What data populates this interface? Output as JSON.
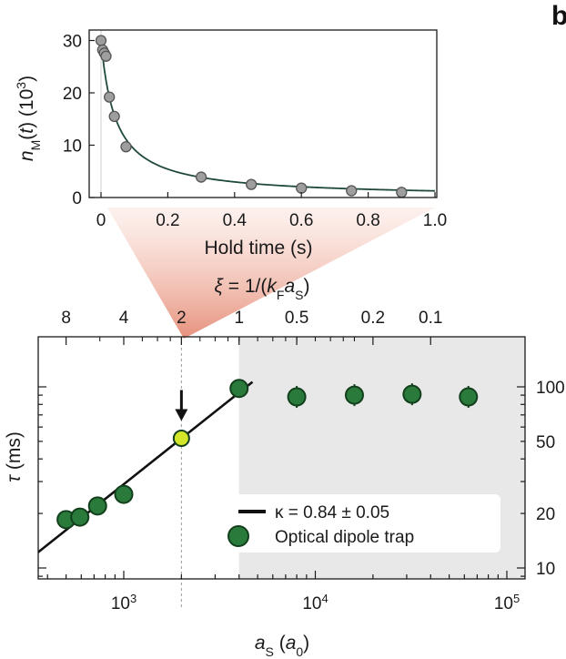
{
  "panel_letter": "b",
  "chart_data": [
    {
      "type": "scatter",
      "xlabel": "Hold time (s)",
      "ylabel": "n_M(t) (10^3)",
      "xlim": [
        -0.02,
        1.0
      ],
      "ylim": [
        0,
        32
      ],
      "xticks": [
        "0",
        "0.2",
        "0.4",
        "0.6",
        "0.8",
        "1.0"
      ],
      "xtick_values": [
        0,
        0.2,
        0.4,
        0.6,
        0.8,
        1.0
      ],
      "yticks": [
        "0",
        "10",
        "20",
        "30"
      ],
      "ytick_values": [
        0,
        10,
        20,
        30
      ],
      "points": [
        {
          "x": 0.0,
          "y": 30.0
        },
        {
          "x": 0.005,
          "y": 28.2
        },
        {
          "x": 0.01,
          "y": 27.6
        },
        {
          "x": 0.015,
          "y": 27.0
        },
        {
          "x": 0.025,
          "y": 19.2
        },
        {
          "x": 0.04,
          "y": 15.5
        },
        {
          "x": 0.075,
          "y": 9.7
        },
        {
          "x": 0.3,
          "y": 3.9
        },
        {
          "x": 0.45,
          "y": 2.5
        },
        {
          "x": 0.6,
          "y": 1.8
        },
        {
          "x": 0.75,
          "y": 1.3
        },
        {
          "x": 0.9,
          "y": 1.0
        }
      ],
      "fit_curve": {
        "A": 30.0,
        "B": 6.8,
        "C": 1.0,
        "D": 0.0
      },
      "colors": {
        "marker": "#9e9e9e",
        "fit": "#1f4a3a"
      }
    },
    {
      "type": "scatter",
      "xlabel": "a_S (a_0)",
      "ylabel": "τ (ms)",
      "top_axis_label": "ξ = 1/(k_F a_S)",
      "x_scale": "log",
      "y_scale": "log",
      "xlim": [
        330,
        110000
      ],
      "ylim": [
        9,
        180
      ],
      "xticks": [
        {
          "value": 1000,
          "label": "10",
          "exp": "3"
        },
        {
          "value": 10000,
          "label": "10",
          "exp": "4"
        },
        {
          "value": 100000,
          "label": "10",
          "exp": "5"
        }
      ],
      "yticks": [
        {
          "value": 10,
          "label": "10"
        },
        {
          "value": 20,
          "label": "20"
        },
        {
          "value": 50,
          "label": "50"
        },
        {
          "value": 100,
          "label": "100"
        }
      ],
      "top_ticks": [
        {
          "label": "8",
          "a_s": 250
        },
        {
          "label": "4",
          "a_s": 500
        },
        {
          "label": "2",
          "a_s": 1000
        },
        {
          "label": "1",
          "a_s": 2000
        },
        {
          "label": "0.5",
          "a_s": 4000
        },
        {
          "label": "0.2",
          "a_s": 10000
        },
        {
          "label": "0.1",
          "a_s": 20000
        }
      ],
      "top_axis_scale_factor": 4.05,
      "points": [
        {
          "x": 500,
          "y": 18.5
        },
        {
          "x": 590,
          "y": 19.1
        },
        {
          "x": 730,
          "y": 22.0
        },
        {
          "x": 1000,
          "y": 25.5
        },
        {
          "x": 2000,
          "y": 52.0
        },
        {
          "x": 4000,
          "y": 98.0
        },
        {
          "x": 8000,
          "y": 88.0
        },
        {
          "x": 16000,
          "y": 90.0
        },
        {
          "x": 32000,
          "y": 91.0
        },
        {
          "x": 63000,
          "y": 88.0
        }
      ],
      "highlight_point": {
        "x": 2000,
        "y": 52.0
      },
      "fit_line": {
        "kappa": 0.84,
        "x_range": [
          330,
          4700
        ],
        "anchor": {
          "x": 1000,
          "y": 29.0
        }
      },
      "shaded_region_x": [
        4000,
        110000
      ],
      "vline_x": 2000,
      "legend": {
        "placement": "bottom-right",
        "entries": [
          "κ = 0.84 ± 0.05",
          "Optical dipole trap"
        ]
      },
      "colors": {
        "marker": "#2a7a3b",
        "marker_edge": "#123f1c",
        "highlight": "#d4e629",
        "fit": "#111111",
        "shade": "#e6e6e6",
        "funnel": "#e79a87"
      }
    }
  ]
}
